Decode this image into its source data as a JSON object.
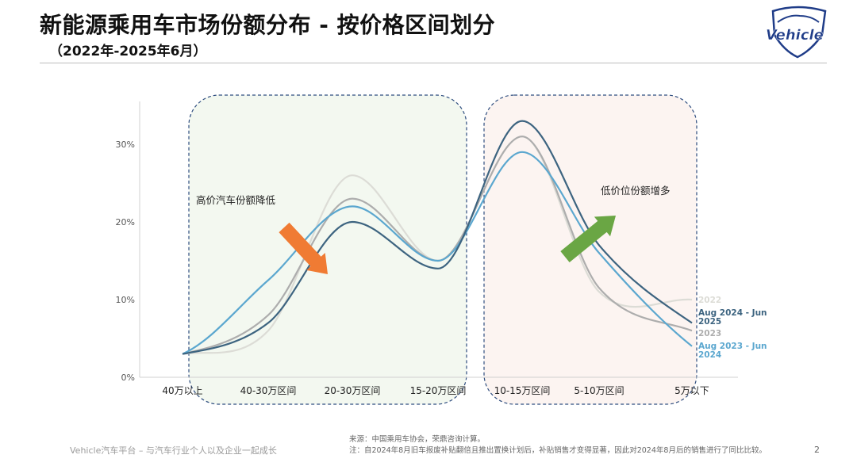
{
  "header": {
    "title": "新能源乘用车市场份额分布 - 按价格区间划分",
    "subtitle": "（2022年-2025年6月）",
    "logo_text": "Vehicle"
  },
  "chart_data": {
    "type": "line",
    "categories": [
      "40万以上",
      "40-30万区间",
      "20-30万区间",
      "15-20万区间",
      "10-15万区间",
      "5-10万区间",
      "5万以下"
    ],
    "y_ticks": [
      "0%",
      "10%",
      "20%",
      "30%"
    ],
    "ylim": [
      0,
      35
    ],
    "series": [
      {
        "name": "2022",
        "color": "#dcdcd6",
        "values": [
          3,
          6,
          26,
          15,
          31,
          11,
          10
        ]
      },
      {
        "name": "2023",
        "color": "#adadad",
        "values": [
          3,
          8,
          23,
          15,
          31,
          11.5,
          6
        ]
      },
      {
        "name": "Aug 2024 - Jun 2025",
        "color": "#3d6480",
        "values": [
          3,
          7,
          20,
          14,
          33,
          17,
          7
        ]
      },
      {
        "name": "Aug 2023 - Jun 2024",
        "color": "#5ba7cf",
        "values": [
          3,
          12.5,
          22,
          15,
          29,
          16,
          4
        ]
      }
    ],
    "annotations": {
      "high_price": "高价汽车份额降低",
      "low_price": "低价位份额增多"
    },
    "colors": {
      "left_region_fill": "#f3f8f0",
      "right_region_fill": "#fcf4f1",
      "region_border": "#2e4d7f",
      "down_arrow": "#f07b33",
      "up_arrow": "#6aa644"
    }
  },
  "footer": {
    "left": "Vehicle汽车平台 – 与汽车行业个人以及企业一起成长",
    "source": "来源：中国乘用车协会，荣鼎咨询计算。",
    "note": "注：自2024年8月旧车报废补贴翻倍且推出置换计划后，补贴销售才变得显著，因此对2024年8月后的销售进行了同比比较。",
    "page": "2"
  }
}
